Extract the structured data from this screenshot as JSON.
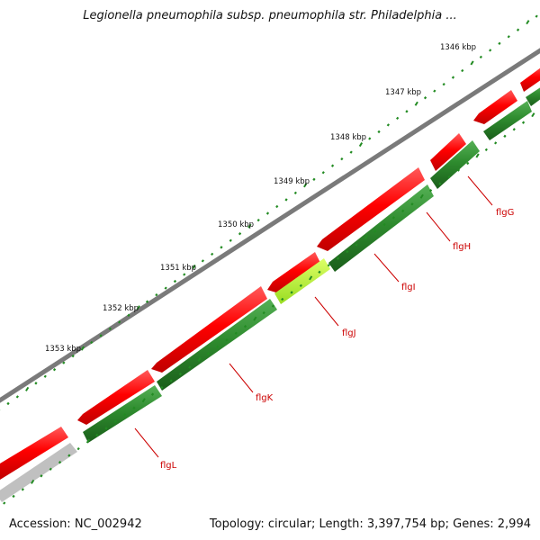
{
  "title": "Legionella pneumophila subsp. pneumophila str. Philadelphia ...",
  "ruler": {
    "labels": [
      "1346 kbp",
      "1347 kbp",
      "1348 kbp",
      "1349 kbp",
      "1350 kbp",
      "1351 kbp",
      "1352 kbp",
      "1353 kbp"
    ],
    "tick_color": "#228B22"
  },
  "genes": [
    {
      "name": "flgG"
    },
    {
      "name": "flgH"
    },
    {
      "name": "flgI"
    },
    {
      "name": "flgJ"
    },
    {
      "name": "flgK"
    },
    {
      "name": "flgL"
    }
  ],
  "colors": {
    "backbone": "#808080",
    "reverse_strand_gene": "#e01010",
    "forward_strand_gene": "#1f7a1f",
    "highlight_gene": "#a8e020",
    "gene_label": "#cc0000"
  },
  "footer": {
    "accession": "Accession: NC_002942",
    "stats": "Topology: circular; Length: 3,397,754 bp; Genes: 2,994"
  }
}
